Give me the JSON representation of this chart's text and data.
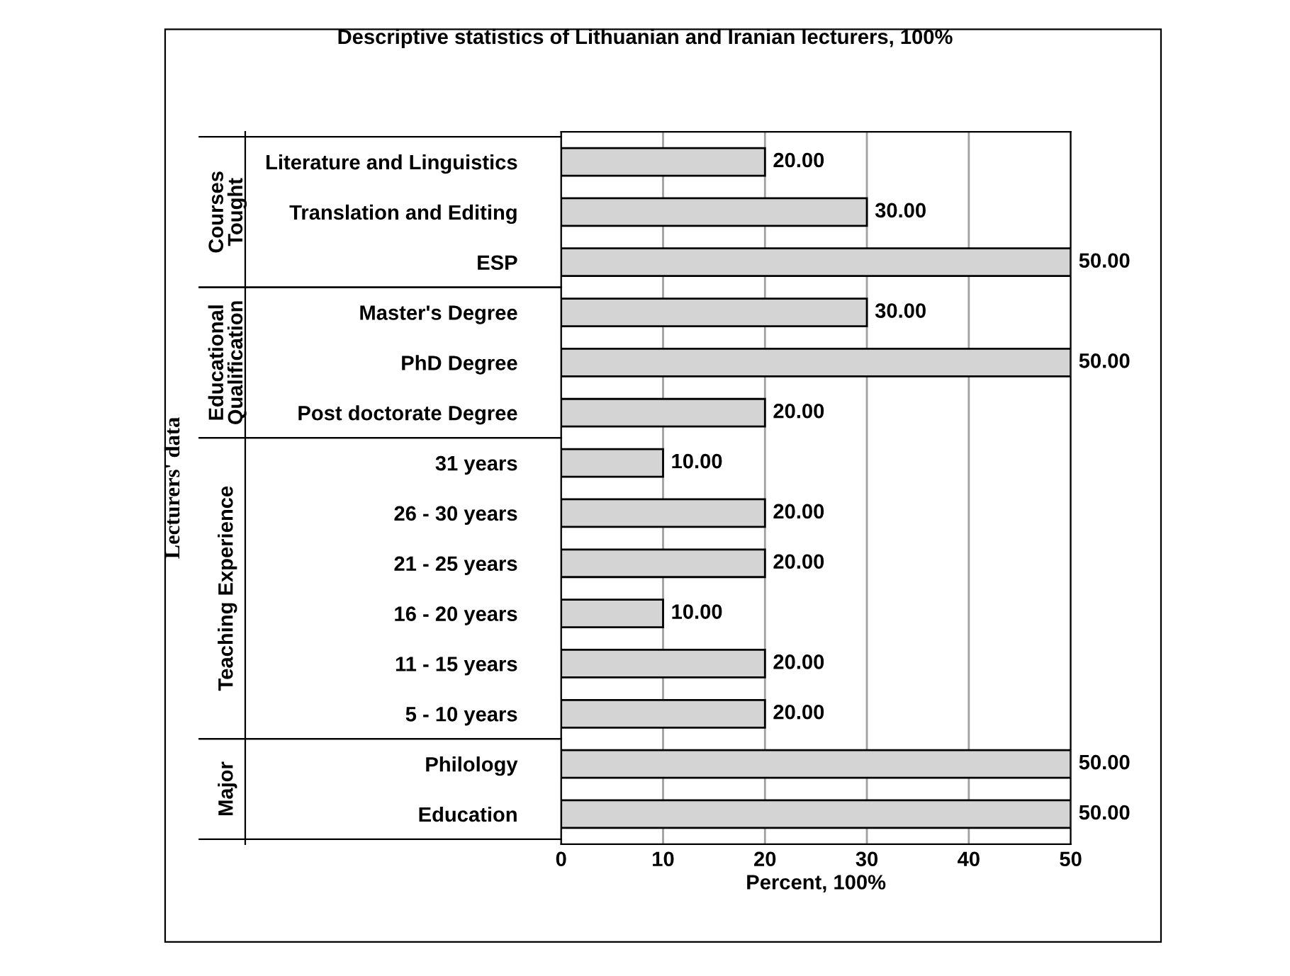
{
  "chart_data": {
    "type": "bar",
    "orientation": "horizontal",
    "title": "Descriptive statistics of Lithuanian and Iranian lecturers, 100%",
    "xlabel": "Percent, 100%",
    "ylabel": "Lecturers' data",
    "categories": [
      "Literature and Linguistics",
      "Translation and Editing",
      "ESP",
      "Master's Degree",
      "PhD Degree",
      "Post doctorate Degree",
      "31 years",
      "26 - 30 years",
      "21 - 25 years",
      "16 - 20 years",
      "11 - 15 years",
      "5 - 10 years",
      "Philology",
      "Education"
    ],
    "values": [
      20,
      30,
      50,
      30,
      50,
      20,
      10,
      20,
      20,
      10,
      20,
      20,
      50,
      50
    ],
    "value_labels": [
      "20.00",
      "30.00",
      "50.00",
      "30.00",
      "50.00",
      "20.00",
      "10.00",
      "20.00",
      "20.00",
      "10.00",
      "20.00",
      "20.00",
      "50.00",
      "50.00"
    ],
    "color": "#d4d4d4",
    "xlim": [
      0,
      50
    ],
    "xticks": [
      0,
      10,
      20,
      30,
      40,
      50
    ],
    "grid": "x",
    "annotations": [
      "Courses Tought",
      "Educational Qualification",
      "Teaching Experience",
      "Major"
    ]
  }
}
